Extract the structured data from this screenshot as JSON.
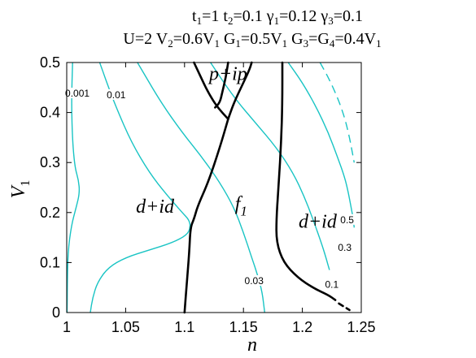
{
  "title_lines": [
    "t1=1  t2=0.1  γ1=0.12  γ3=0.1",
    "U=2  V2=0.6V1  G1=0.5V1  G3=G4=0.4V1"
  ],
  "chart_data": {
    "type": "line",
    "xlabel": "n",
    "ylabel": "V1",
    "xlim": [
      1,
      1.25
    ],
    "ylim": [
      0,
      0.5
    ],
    "xticks": [
      "1",
      "1.05",
      "1.1",
      "1.15",
      "1.2",
      "1.25"
    ],
    "yticks": [
      "0",
      "0.1",
      "0.2",
      "0.3",
      "0.4",
      "0.5"
    ],
    "grid": false,
    "colors": {
      "contour": "#19c4c4",
      "boundary": "#000000"
    },
    "regions": [
      {
        "label": "d+id",
        "x": 1.075,
        "y": 0.2
      },
      {
        "label": "p+ip",
        "x": 1.137,
        "y": 0.465
      },
      {
        "label": "f1",
        "x": 1.148,
        "y": 0.205
      },
      {
        "label": "d+id",
        "x": 1.213,
        "y": 0.17
      }
    ],
    "contours": [
      {
        "name": "0.001",
        "label": {
          "x": 1.009,
          "y": 0.435
        },
        "style": "solid",
        "points": [
          [
            1.005,
            0.5
          ],
          [
            1.004,
            0.42
          ],
          [
            1.005,
            0.34
          ],
          [
            1.007,
            0.29
          ],
          [
            1.01,
            0.265
          ],
          [
            1.011,
            0.24
          ],
          [
            1.008,
            0.21
          ],
          [
            1.004,
            0.175
          ],
          [
            1.001,
            0.12
          ],
          [
            1.0005,
            0.05
          ],
          [
            1.0003,
            0
          ]
        ]
      },
      {
        "name": "0.01",
        "label": {
          "x": 1.042,
          "y": 0.432
        },
        "style": "solid",
        "points": [
          [
            1.028,
            0.5
          ],
          [
            1.034,
            0.46
          ],
          [
            1.042,
            0.41
          ],
          [
            1.055,
            0.34
          ],
          [
            1.07,
            0.28
          ],
          [
            1.085,
            0.235
          ],
          [
            1.098,
            0.2
          ],
          [
            1.104,
            0.185
          ],
          [
            1.105,
            0.17
          ],
          [
            1.102,
            0.155
          ],
          [
            1.09,
            0.14
          ],
          [
            1.07,
            0.125
          ],
          [
            1.05,
            0.11
          ],
          [
            1.035,
            0.09
          ],
          [
            1.026,
            0.06
          ],
          [
            1.022,
            0.03
          ],
          [
            1.02,
            0
          ]
        ]
      },
      {
        "name": "0.03",
        "label": {
          "x": 1.159,
          "y": 0.06
        },
        "style": "solid",
        "points": [
          [
            1.06,
            0.5
          ],
          [
            1.08,
            0.42
          ],
          [
            1.098,
            0.36
          ],
          [
            1.115,
            0.31
          ],
          [
            1.13,
            0.26
          ],
          [
            1.142,
            0.21
          ],
          [
            1.15,
            0.16
          ],
          [
            1.157,
            0.11
          ],
          [
            1.162,
            0.075
          ],
          [
            1.166,
            0.04
          ],
          [
            1.168,
            0
          ]
        ]
      },
      {
        "name": "0.1",
        "label": {
          "x": 1.225,
          "y": 0.053
        },
        "style": "solid",
        "points": [
          [
            1.122,
            0.5
          ],
          [
            1.142,
            0.43
          ],
          [
            1.16,
            0.38
          ],
          [
            1.178,
            0.33
          ],
          [
            1.192,
            0.28
          ],
          [
            1.202,
            0.23
          ],
          [
            1.21,
            0.18
          ],
          [
            1.216,
            0.14
          ],
          [
            1.22,
            0.11
          ],
          [
            1.223,
            0.085
          ]
        ]
      },
      {
        "name": "0.3",
        "label": {
          "x": 1.236,
          "y": 0.127
        },
        "style": "solid",
        "points": [
          [
            1.188,
            0.5
          ],
          [
            1.2,
            0.46
          ],
          [
            1.212,
            0.41
          ],
          [
            1.222,
            0.36
          ],
          [
            1.23,
            0.31
          ],
          [
            1.236,
            0.27
          ],
          [
            1.239,
            0.24
          ],
          [
            1.241,
            0.215
          ],
          [
            1.243,
            0.19
          ],
          [
            1.244,
            0.17
          ]
        ]
      },
      {
        "name": "0.5",
        "label": {
          "x": 1.238,
          "y": 0.182
        },
        "style": "dashed",
        "points": [
          [
            1.215,
            0.5
          ],
          [
            1.222,
            0.47
          ],
          [
            1.228,
            0.44
          ],
          [
            1.233,
            0.41
          ],
          [
            1.237,
            0.38
          ],
          [
            1.24,
            0.35
          ],
          [
            1.242,
            0.325
          ],
          [
            1.244,
            0.3
          ]
        ]
      }
    ],
    "boundaries": [
      {
        "name": "p+ip lower-left",
        "style": "solid",
        "points": [
          [
            1.108,
            0.5
          ],
          [
            1.113,
            0.475
          ],
          [
            1.12,
            0.44
          ],
          [
            1.128,
            0.41
          ],
          [
            1.137,
            0.387
          ]
        ]
      },
      {
        "name": "p+ip lower-right",
        "style": "solid",
        "points": [
          [
            1.137,
            0.387
          ],
          [
            1.142,
            0.42
          ],
          [
            1.149,
            0.455
          ],
          [
            1.155,
            0.485
          ],
          [
            1.157,
            0.5
          ]
        ]
      },
      {
        "name": "d+id / f1 left",
        "style": "solid",
        "points": [
          [
            1.137,
            0.387
          ],
          [
            1.13,
            0.33
          ],
          [
            1.12,
            0.26
          ],
          [
            1.111,
            0.212
          ],
          [
            1.108,
            0.187
          ],
          [
            1.105,
            0.17
          ],
          [
            1.104,
            0.12
          ],
          [
            1.102,
            0.06
          ],
          [
            1.1,
            0
          ]
        ]
      },
      {
        "name": "upper left branch",
        "style": "solid",
        "points": [
          [
            1.137,
            0.5
          ],
          [
            1.135,
            0.47
          ],
          [
            1.132,
            0.44
          ],
          [
            1.13,
            0.42
          ],
          [
            1.126,
            0.41
          ]
        ]
      },
      {
        "name": "f1 / d+id right",
        "style": "solid",
        "points": [
          [
            1.183,
            0.5
          ],
          [
            1.183,
            0.42
          ],
          [
            1.182,
            0.34
          ],
          [
            1.18,
            0.26
          ],
          [
            1.178,
            0.19
          ],
          [
            1.178,
            0.14
          ],
          [
            1.184,
            0.1
          ],
          [
            1.196,
            0.07
          ],
          [
            1.21,
            0.048
          ],
          [
            1.222,
            0.035
          ],
          [
            1.228,
            0.025
          ]
        ]
      },
      {
        "name": "f1 / d+id right (dashed tail)",
        "style": "dashed",
        "points": [
          [
            1.231,
            0.018
          ],
          [
            1.24,
            0.005
          ]
        ]
      }
    ]
  }
}
